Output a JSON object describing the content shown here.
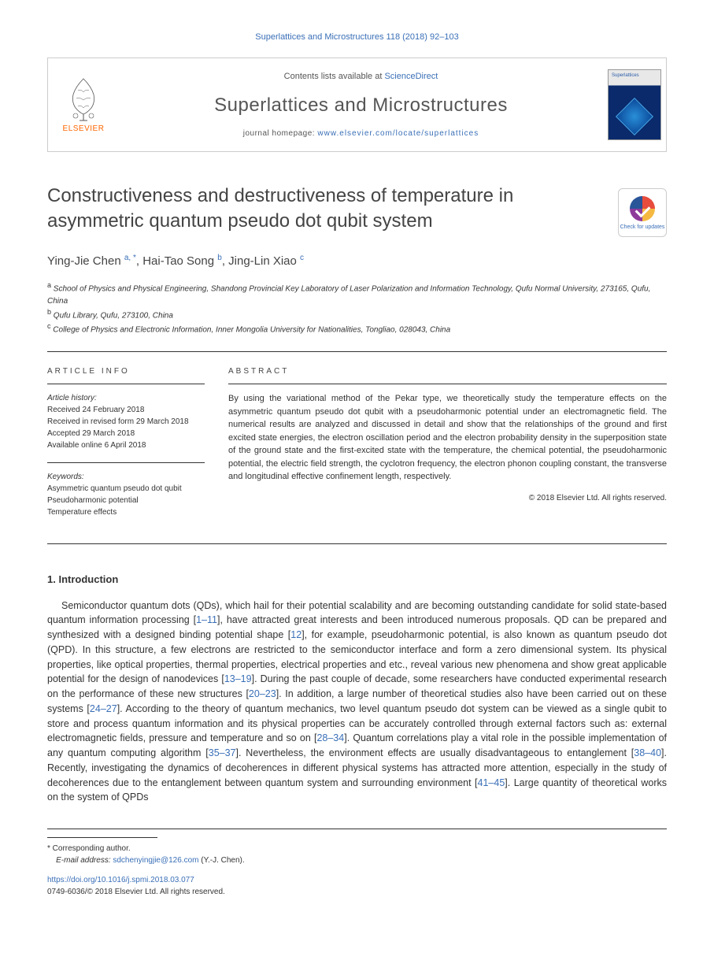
{
  "citation": "Superlattices and Microstructures 118 (2018) 92–103",
  "header": {
    "contents_prefix": "Contents lists available at ",
    "contents_link": "ScienceDirect",
    "journal_title": "Superlattices and Microstructures",
    "homepage_prefix": "journal homepage: ",
    "homepage_url": "www.elsevier.com/locate/superlattices",
    "publisher": "ELSEVIER",
    "cover_label": "Superlattices"
  },
  "check_updates": "Check for updates",
  "article": {
    "title": "Constructiveness and destructiveness of temperature in asymmetric quantum pseudo dot qubit system",
    "authors_html": "Ying-Jie Chen <sup>a, *</sup>, Hai-Tao Song <sup>b</sup>, Jing-Lin Xiao <sup>c</sup>",
    "affiliations": {
      "a": "School of Physics and Physical Engineering, Shandong Provincial Key Laboratory of Laser Polarization and Information Technology, Qufu Normal University, 273165, Qufu, China",
      "b": "Qufu Library, Qufu, 273100, China",
      "c": "College of Physics and Electronic Information, Inner Mongolia University for Nationalities, Tongliao, 028043, China"
    }
  },
  "info": {
    "heading": "ARTICLE INFO",
    "history_label": "Article history:",
    "history": [
      "Received 24 February 2018",
      "Received in revised form 29 March 2018",
      "Accepted 29 March 2018",
      "Available online 6 April 2018"
    ],
    "keywords_label": "Keywords:",
    "keywords": [
      "Asymmetric quantum pseudo dot qubit",
      "Pseudoharmonic potential",
      "Temperature effects"
    ]
  },
  "abstract": {
    "heading": "ABSTRACT",
    "text": "By using the variational method of the Pekar type, we theoretically study the temperature effects on the asymmetric quantum pseudo dot qubit with a pseudoharmonic potential under an electromagnetic field. The numerical results are analyzed and discussed in detail and show that the relationships of the ground and first excited state energies, the electron oscillation period and the electron probability density in the superposition state of the ground state and the first-excited state with the temperature, the chemical potential, the pseudoharmonic potential, the electric field strength, the cyclotron frequency, the electron phonon coupling constant, the transverse and longitudinal effective confinement length, respectively.",
    "copyright": "© 2018 Elsevier Ltd. All rights reserved."
  },
  "section1": {
    "heading": "1. Introduction",
    "body": "Semiconductor quantum dots (QDs), which hail for their potential scalability and are becoming outstanding candidate for solid state-based quantum information processing [<span class=\"ref\">1–11</span>], have attracted great interests and been introduced numerous proposals. QD can be prepared and synthesized with a designed binding potential shape [<span class=\"ref\">12</span>], for example, pseudoharmonic potential, is also known as quantum pseudo dot (QPD). In this structure, a few electrons are restricted to the semiconductor interface and form a zero dimensional system. Its physical properties, like optical properties, thermal properties, electrical properties and etc., reveal various new phenomena and show great applicable potential for the design of nanodevices [<span class=\"ref\">13–19</span>]. During the past couple of decade, some researchers have conducted experimental research on the performance of these new structures [<span class=\"ref\">20–23</span>]. In addition, a large number of theoretical studies also have been carried out on these systems [<span class=\"ref\">24–27</span>]. According to the theory of quantum mechanics, two level quantum pseudo dot system can be viewed as a single qubit to store and process quantum information and its physical properties can be accurately controlled through external factors such as: external electromagnetic fields, pressure and temperature and so on [<span class=\"ref\">28–34</span>]. Quantum correlations play a vital role in the possible implementation of any quantum computing algorithm [<span class=\"ref\">35–37</span>]. Nevertheless, the environment effects are usually disadvantageous to entanglement [<span class=\"ref\">38–40</span>]. Recently, investigating the dynamics of decoherences in different physical systems has attracted more attention, especially in the study of decoherences due to the entanglement between quantum system and surrounding environment [<span class=\"ref\">41–45</span>]. Large quantity of theoretical works on the system of QPDs"
  },
  "footer": {
    "corr_label": "* Corresponding author.",
    "email_label": "E-mail address:",
    "email": "sdchenyingjie@126.com",
    "email_author": "(Y.-J. Chen).",
    "doi": "https://doi.org/10.1016/j.spmi.2018.03.077",
    "issn": "0749-6036/© 2018 Elsevier Ltd. All rights reserved."
  },
  "colors": {
    "link": "#3a6fb7",
    "orange": "#ff6600",
    "text": "#333333",
    "heading": "#444444",
    "border": "#cccccc"
  }
}
